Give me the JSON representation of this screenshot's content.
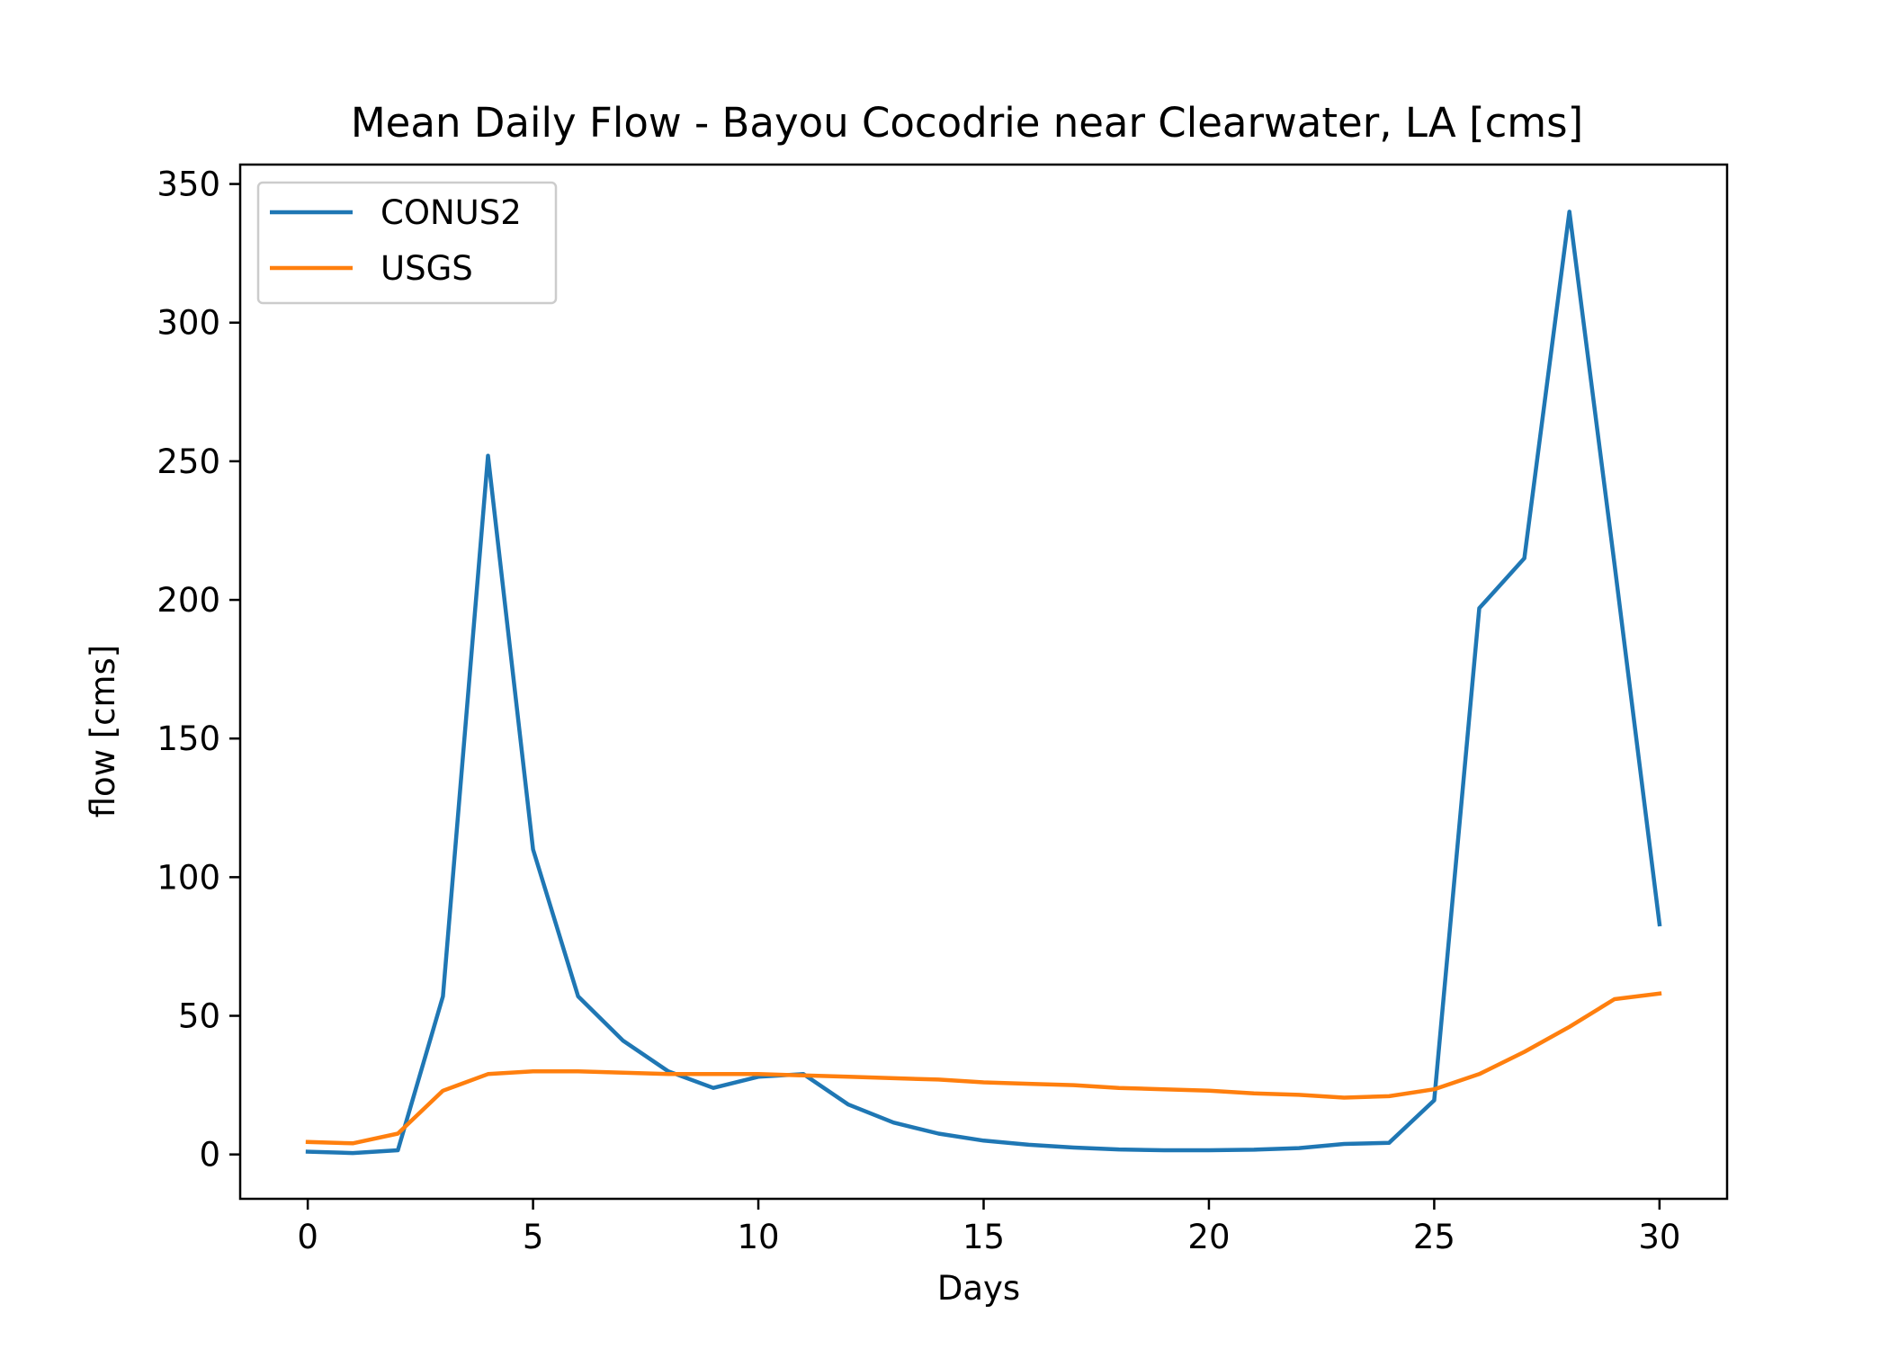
{
  "chart_data": {
    "type": "line",
    "title": "Mean Daily Flow - Bayou Cocodrie near Clearwater, LA [cms]",
    "xlabel": "Days",
    "ylabel": "flow [cms]",
    "xlim": [
      -1.5,
      31.5
    ],
    "ylim": [
      -16,
      357
    ],
    "xticks": [
      0,
      5,
      10,
      15,
      20,
      25,
      30
    ],
    "yticks": [
      0,
      50,
      100,
      150,
      200,
      250,
      300,
      350
    ],
    "grid": false,
    "legend_position": "upper-left",
    "x": [
      0,
      1,
      2,
      3,
      4,
      5,
      6,
      7,
      8,
      9,
      10,
      11,
      12,
      13,
      14,
      15,
      16,
      17,
      18,
      19,
      20,
      21,
      22,
      23,
      24,
      25,
      26,
      27,
      28,
      29,
      30
    ],
    "series": [
      {
        "name": "CONUS2",
        "color": "#1f77b4",
        "values": [
          1,
          0.5,
          1.5,
          57,
          252,
          110,
          57,
          41,
          30,
          24,
          28,
          29,
          18,
          11.5,
          7.5,
          5,
          3.5,
          2.5,
          1.8,
          1.5,
          1.5,
          1.7,
          2.3,
          3.8,
          4.2,
          19.5,
          197,
          215,
          340,
          213,
          83
        ]
      },
      {
        "name": "USGS",
        "color": "#ff7f0e",
        "values": [
          4.5,
          4,
          7.5,
          23,
          29,
          30,
          30,
          29.5,
          29,
          29,
          29,
          28.5,
          28,
          27.5,
          27,
          26,
          25.5,
          25,
          24,
          23.5,
          23,
          22,
          21.5,
          20.5,
          21,
          23.5,
          29,
          37,
          46,
          56,
          58
        ]
      }
    ]
  }
}
